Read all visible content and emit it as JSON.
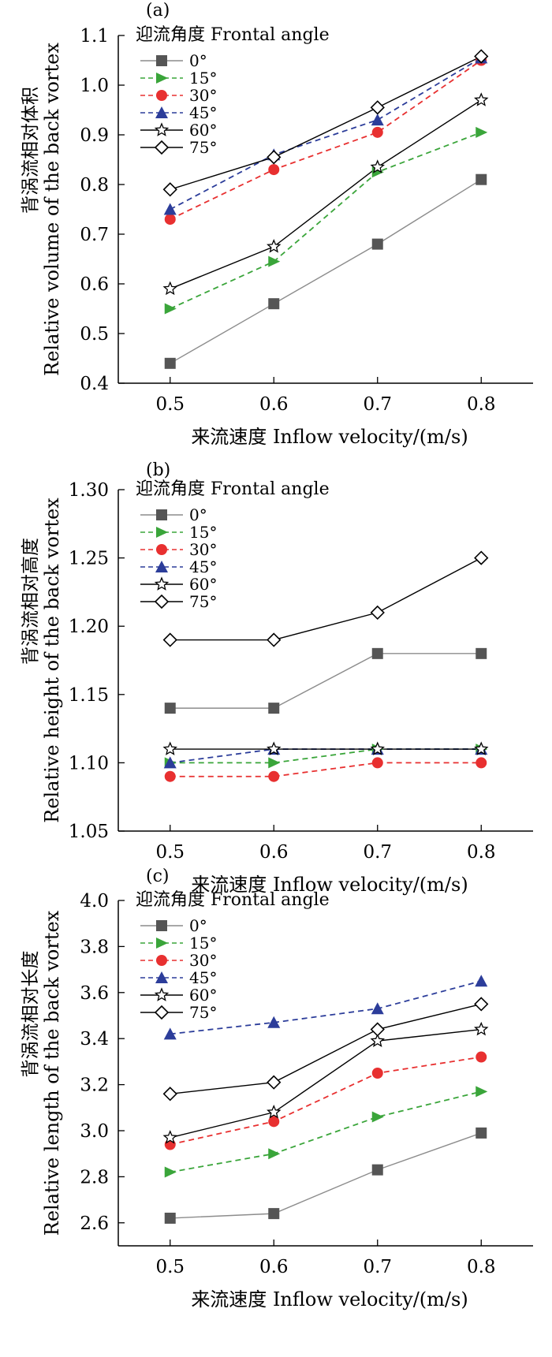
{
  "chart_data": [
    {
      "type": "line",
      "panel_label": "(a)",
      "xlabel": "来流速度 Inflow velocity/(m/s)",
      "ylabel_cn": "背涡流相对体积",
      "ylabel_en": "Relative volume of the back vortex",
      "legend_title": "迎流角度 Frontal angle",
      "x": [
        0.5,
        0.6,
        0.7,
        0.8
      ],
      "x_ticks": [
        "0.5",
        "0.6",
        "0.7",
        "0.8"
      ],
      "xlim": [
        0.45,
        0.85
      ],
      "ylim": [
        0.4,
        1.1
      ],
      "y_ticks": [
        "0.4",
        "0.5",
        "0.6",
        "0.7",
        "0.8",
        "0.9",
        "1.0",
        "1.1"
      ],
      "series": [
        {
          "name": "0°",
          "values": [
            0.44,
            0.56,
            0.68,
            0.81
          ],
          "color": "#8c8c8c",
          "marker": "square",
          "dashed": false
        },
        {
          "name": "15°",
          "values": [
            0.55,
            0.645,
            0.825,
            0.905
          ],
          "color": "#3aa53a",
          "marker": "triangle-right",
          "dashed": true
        },
        {
          "name": "30°",
          "values": [
            0.73,
            0.83,
            0.905,
            1.05
          ],
          "color": "#e83030",
          "marker": "circle",
          "dashed": true
        },
        {
          "name": "45°",
          "values": [
            0.75,
            0.86,
            0.93,
            1.055
          ],
          "color": "#2c3d9a",
          "marker": "triangle-up",
          "dashed": true
        },
        {
          "name": "60°",
          "values": [
            0.59,
            0.675,
            0.835,
            0.97
          ],
          "color": "#000000",
          "marker": "star",
          "dashed": false
        },
        {
          "name": "75°",
          "values": [
            0.79,
            0.855,
            0.955,
            1.058
          ],
          "color": "#000000",
          "marker": "diamond",
          "dashed": false
        }
      ]
    },
    {
      "type": "line",
      "panel_label": "(b)",
      "xlabel": "来流速度 Inflow velocity/(m/s)",
      "ylabel_cn": "背涡流相对高度",
      "ylabel_en": "Relative height of the back vortex",
      "legend_title": "迎流角度 Frontal angle",
      "x": [
        0.5,
        0.6,
        0.7,
        0.8
      ],
      "x_ticks": [
        "0.5",
        "0.6",
        "0.7",
        "0.8"
      ],
      "xlim": [
        0.45,
        0.85
      ],
      "ylim": [
        1.05,
        1.3
      ],
      "y_ticks": [
        "1.05",
        "1.10",
        "1.15",
        "1.20",
        "1.25",
        "1.30"
      ],
      "series": [
        {
          "name": "0°",
          "values": [
            1.14,
            1.14,
            1.18,
            1.18
          ],
          "color": "#8c8c8c",
          "marker": "square",
          "dashed": false
        },
        {
          "name": "15°",
          "values": [
            1.1,
            1.1,
            1.11,
            1.11
          ],
          "color": "#3aa53a",
          "marker": "triangle-right",
          "dashed": true
        },
        {
          "name": "30°",
          "values": [
            1.09,
            1.09,
            1.1,
            1.1
          ],
          "color": "#e83030",
          "marker": "circle",
          "dashed": true
        },
        {
          "name": "45°",
          "values": [
            1.1,
            1.11,
            1.11,
            1.11
          ],
          "color": "#2c3d9a",
          "marker": "triangle-up",
          "dashed": true
        },
        {
          "name": "60°",
          "values": [
            1.11,
            1.11,
            1.11,
            1.11
          ],
          "color": "#000000",
          "marker": "star",
          "dashed": false
        },
        {
          "name": "75°",
          "values": [
            1.19,
            1.19,
            1.21,
            1.25
          ],
          "color": "#000000",
          "marker": "diamond",
          "dashed": false
        }
      ]
    },
    {
      "type": "line",
      "panel_label": "(c)",
      "xlabel": "来流速度 Inflow velocity/(m/s)",
      "ylabel_cn": "背涡流相对长度",
      "ylabel_en": "Relative length of the back vortex",
      "legend_title": "迎流角度 Frontal angle",
      "x": [
        0.5,
        0.6,
        0.7,
        0.8
      ],
      "x_ticks": [
        "0.5",
        "0.6",
        "0.7",
        "0.8"
      ],
      "xlim": [
        0.45,
        0.85
      ],
      "ylim": [
        2.5,
        4.0
      ],
      "y_ticks": [
        "2.6",
        "2.8",
        "3.0",
        "3.2",
        "3.4",
        "3.6",
        "3.8",
        "4.0"
      ],
      "series": [
        {
          "name": "0°",
          "values": [
            2.62,
            2.64,
            2.83,
            2.99
          ],
          "color": "#8c8c8c",
          "marker": "square",
          "dashed": false
        },
        {
          "name": "15°",
          "values": [
            2.82,
            2.9,
            3.06,
            3.17
          ],
          "color": "#3aa53a",
          "marker": "triangle-right",
          "dashed": true
        },
        {
          "name": "30°",
          "values": [
            2.94,
            3.04,
            3.25,
            3.32
          ],
          "color": "#e83030",
          "marker": "circle",
          "dashed": true
        },
        {
          "name": "45°",
          "values": [
            3.42,
            3.47,
            3.53,
            3.65
          ],
          "color": "#2c3d9a",
          "marker": "triangle-up",
          "dashed": true
        },
        {
          "name": "60°",
          "values": [
            2.97,
            3.08,
            3.39,
            3.44
          ],
          "color": "#000000",
          "marker": "star",
          "dashed": false
        },
        {
          "name": "75°",
          "values": [
            3.16,
            3.21,
            3.44,
            3.55
          ],
          "color": "#000000",
          "marker": "diamond",
          "dashed": false
        }
      ]
    }
  ]
}
